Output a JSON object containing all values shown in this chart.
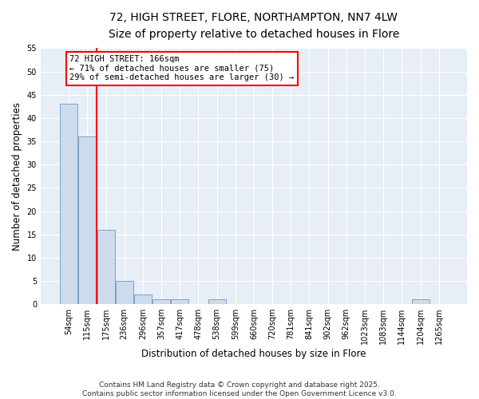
{
  "title1": "72, HIGH STREET, FLORE, NORTHAMPTON, NN7 4LW",
  "title2": "Size of property relative to detached houses in Flore",
  "xlabel": "Distribution of detached houses by size in Flore",
  "ylabel": "Number of detached properties",
  "categories": [
    "54sqm",
    "115sqm",
    "175sqm",
    "236sqm",
    "296sqm",
    "357sqm",
    "417sqm",
    "478sqm",
    "538sqm",
    "599sqm",
    "660sqm",
    "720sqm",
    "781sqm",
    "841sqm",
    "902sqm",
    "962sqm",
    "1023sqm",
    "1083sqm",
    "1144sqm",
    "1204sqm",
    "1265sqm"
  ],
  "values": [
    43,
    36,
    16,
    5,
    2,
    1,
    1,
    0,
    1,
    0,
    0,
    0,
    0,
    0,
    0,
    0,
    0,
    0,
    0,
    1,
    0
  ],
  "bar_color": "#cddcec",
  "bar_edgecolor": "#6699cc",
  "vline_x": 1.5,
  "vline_color": "red",
  "annotation_line1": "72 HIGH STREET: 166sqm",
  "annotation_line2": "← 71% of detached houses are smaller (75)",
  "annotation_line3": "29% of semi-detached houses are larger (30) →",
  "ylim": [
    0,
    55
  ],
  "yticks": [
    0,
    5,
    10,
    15,
    20,
    25,
    30,
    35,
    40,
    45,
    50,
    55
  ],
  "background_color": "#e8eef5",
  "grid_color": "white",
  "footer": "Contains HM Land Registry data © Crown copyright and database right 2025.\nContains public sector information licensed under the Open Government Licence v3.0.",
  "title_fontsize": 10,
  "subtitle_fontsize": 9,
  "xlabel_fontsize": 8.5,
  "ylabel_fontsize": 8.5,
  "tick_fontsize": 7,
  "annotation_fontsize": 7.5,
  "footer_fontsize": 6.5
}
